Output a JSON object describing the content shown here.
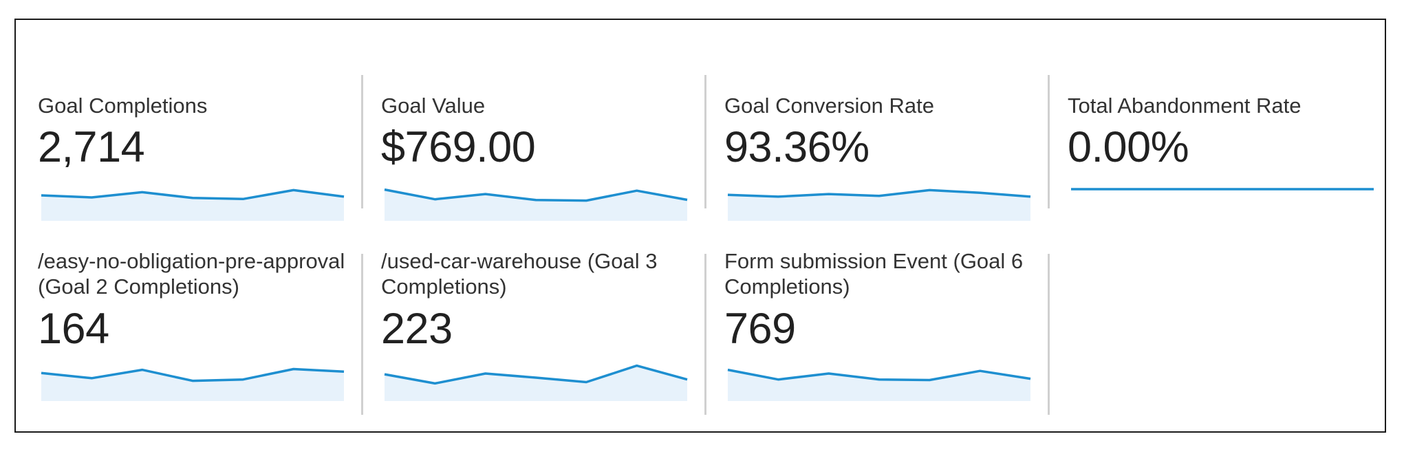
{
  "colors": {
    "line": "#1e8fd0",
    "area": "#e7f2fb",
    "divider": "#d0d0d0"
  },
  "tiles": [
    {
      "label": "Goal Completions",
      "value": "2,714",
      "trend": [
        0.5,
        0.42,
        0.62,
        0.4,
        0.36,
        0.7,
        0.45
      ]
    },
    {
      "label": "Goal Value",
      "value": "$769.00",
      "trend": [
        0.72,
        0.35,
        0.55,
        0.32,
        0.3,
        0.68,
        0.33
      ]
    },
    {
      "label": "Goal Conversion Rate",
      "value": "93.36%",
      "trend": [
        0.52,
        0.45,
        0.55,
        0.48,
        0.7,
        0.6,
        0.45
      ]
    },
    {
      "label": "Total Abandonment Rate",
      "value": "0.00%",
      "trend": [
        0,
        0,
        0,
        0,
        0,
        0,
        0
      ]
    },
    {
      "label": "/easy-no-obligation-pre-approval (Goal 2 Completions)",
      "value": "164",
      "trend": [
        0.6,
        0.4,
        0.72,
        0.3,
        0.35,
        0.75,
        0.65
      ]
    },
    {
      "label": "/used-car-warehouse (Goal 3 Completions)",
      "value": "223",
      "trend": [
        0.55,
        0.2,
        0.58,
        0.42,
        0.25,
        0.88,
        0.35
      ]
    },
    {
      "label": "Form submission Event (Goal 6 Completions)",
      "value": "769",
      "trend": [
        0.72,
        0.35,
        0.58,
        0.35,
        0.33,
        0.68,
        0.38
      ]
    }
  ]
}
